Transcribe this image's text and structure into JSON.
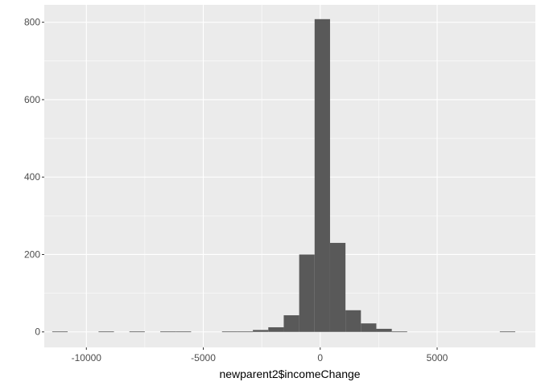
{
  "chart_data": {
    "type": "histogram",
    "title": "",
    "xlabel": "newparent2$incomeChange",
    "ylabel": "",
    "xlim": [
      -11800,
      9200
    ],
    "ylim": [
      -40,
      845
    ],
    "bin_width": 660,
    "x_ticks": [
      {
        "value": -10000,
        "label": "-10000"
      },
      {
        "value": -5000,
        "label": "-5000"
      },
      {
        "value": 0,
        "label": "0"
      },
      {
        "value": 5000,
        "label": "5000"
      }
    ],
    "y_ticks": [
      {
        "value": 0,
        "label": "0"
      },
      {
        "value": 200,
        "label": "200"
      },
      {
        "value": 400,
        "label": "400"
      },
      {
        "value": 600,
        "label": "600"
      },
      {
        "value": 800,
        "label": "800"
      }
    ],
    "bins": [
      {
        "x0": -11460,
        "x1": -10800,
        "count": 1
      },
      {
        "x0": -9480,
        "x1": -8820,
        "count": 1
      },
      {
        "x0": -8160,
        "x1": -7500,
        "count": 1
      },
      {
        "x0": -6840,
        "x1": -6180,
        "count": 1
      },
      {
        "x0": -6180,
        "x1": -5520,
        "count": 1
      },
      {
        "x0": -4200,
        "x1": -3540,
        "count": 1
      },
      {
        "x0": -3540,
        "x1": -2880,
        "count": 1
      },
      {
        "x0": -2880,
        "x1": -2220,
        "count": 5
      },
      {
        "x0": -2220,
        "x1": -1560,
        "count": 12
      },
      {
        "x0": -1560,
        "x1": -900,
        "count": 43
      },
      {
        "x0": -900,
        "x1": -240,
        "count": 200
      },
      {
        "x0": -240,
        "x1": 420,
        "count": 808
      },
      {
        "x0": 420,
        "x1": 1080,
        "count": 230
      },
      {
        "x0": 1080,
        "x1": 1740,
        "count": 56
      },
      {
        "x0": 1740,
        "x1": 2400,
        "count": 22
      },
      {
        "x0": 2400,
        "x1": 3060,
        "count": 8
      },
      {
        "x0": 3060,
        "x1": 3720,
        "count": 1
      },
      {
        "x0": 7680,
        "x1": 8340,
        "count": 1
      }
    ],
    "colors": {
      "panel_background": "#ebebeb",
      "grid_major": "#ffffff",
      "bar_fill": "#595959",
      "tick_text": "#4d4d4d",
      "axis_title": "#000000"
    }
  }
}
